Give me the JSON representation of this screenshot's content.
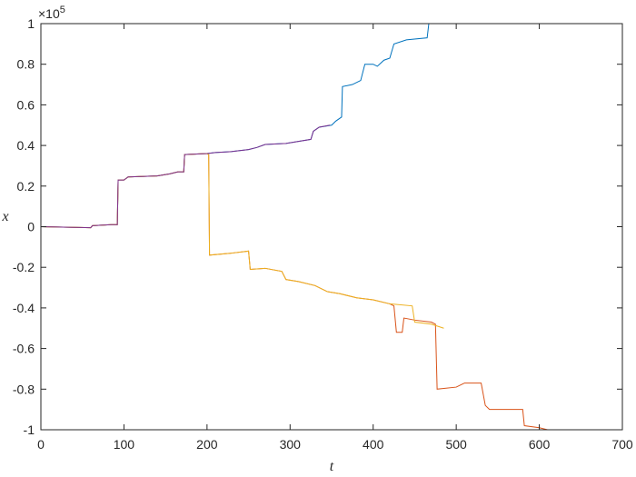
{
  "chart_data": {
    "type": "line",
    "x_label": "t",
    "y_label": "x",
    "y_multiplier": "×10",
    "y_multiplier_exponent": "5",
    "xlim": [
      0,
      700
    ],
    "xticks": [
      0,
      100,
      200,
      300,
      400,
      500,
      600,
      700
    ],
    "ylim": [
      -1,
      1
    ],
    "yticks": [
      -1,
      -0.8,
      -0.6,
      -0.4,
      -0.2,
      0,
      0.2,
      0.4,
      0.6,
      0.8,
      1
    ],
    "grid": false,
    "box": true,
    "series": [
      {
        "color": "#0072BD",
        "x": [
          0,
          60,
          62,
          85,
          92,
          93,
          100,
          105,
          140,
          155,
          165,
          172,
          173,
          200,
          210,
          230,
          250,
          260,
          270,
          295,
          310,
          325,
          328,
          335,
          350,
          355,
          362,
          363,
          375,
          385,
          390,
          400,
          405,
          413,
          420,
          425,
          440,
          465,
          467,
          478
        ],
        "values": [
          0,
          -0.005,
          0.005,
          0.01,
          0.01,
          0.23,
          0.23,
          0.245,
          0.25,
          0.26,
          0.27,
          0.27,
          0.355,
          0.36,
          0.365,
          0.37,
          0.38,
          0.39,
          0.405,
          0.41,
          0.42,
          0.43,
          0.47,
          0.49,
          0.5,
          0.52,
          0.54,
          0.69,
          0.7,
          0.72,
          0.8,
          0.8,
          0.79,
          0.82,
          0.83,
          0.9,
          0.92,
          0.93,
          1.0,
          1.0
        ]
      },
      {
        "color": "#D95319",
        "x": [
          0,
          60,
          62,
          85,
          92,
          93,
          100,
          105,
          140,
          155,
          165,
          172,
          173,
          200,
          202,
          203,
          230,
          250,
          252,
          270,
          290,
          295,
          310,
          330,
          345,
          360,
          380,
          400,
          420,
          425,
          428,
          435,
          437,
          450,
          470,
          475,
          477,
          500,
          510,
          530,
          535,
          540,
          580,
          582,
          600,
          610,
          630
        ],
        "values": [
          0,
          -0.005,
          0.005,
          0.01,
          0.01,
          0.23,
          0.23,
          0.245,
          0.25,
          0.26,
          0.27,
          0.27,
          0.355,
          0.36,
          0.355,
          -0.14,
          -0.13,
          -0.12,
          -0.21,
          -0.205,
          -0.22,
          -0.26,
          -0.27,
          -0.29,
          -0.32,
          -0.33,
          -0.35,
          -0.36,
          -0.38,
          -0.39,
          -0.52,
          -0.52,
          -0.45,
          -0.46,
          -0.47,
          -0.48,
          -0.8,
          -0.79,
          -0.77,
          -0.77,
          -0.88,
          -0.9,
          -0.9,
          -0.98,
          -0.99,
          -1.0,
          -1.0
        ]
      },
      {
        "color": "#EDB120",
        "x": [
          0,
          60,
          62,
          85,
          92,
          93,
          100,
          105,
          140,
          155,
          165,
          172,
          173,
          200,
          202,
          203,
          230,
          250,
          252,
          270,
          290,
          295,
          310,
          330,
          345,
          360,
          380,
          400,
          420,
          447,
          450,
          470,
          485
        ],
        "values": [
          0,
          -0.005,
          0.005,
          0.01,
          0.01,
          0.23,
          0.23,
          0.245,
          0.25,
          0.26,
          0.27,
          0.27,
          0.355,
          0.36,
          0.355,
          -0.14,
          -0.13,
          -0.12,
          -0.21,
          -0.205,
          -0.22,
          -0.26,
          -0.27,
          -0.29,
          -0.32,
          -0.33,
          -0.35,
          -0.36,
          -0.38,
          -0.39,
          -0.47,
          -0.48,
          -0.5
        ]
      },
      {
        "color": "#7E2F8E",
        "x": [
          0,
          60,
          62,
          85,
          92,
          93,
          100,
          105,
          140,
          155,
          165,
          172,
          173,
          200,
          210,
          230,
          250,
          260,
          270,
          295,
          310,
          325,
          328,
          335,
          348
        ],
        "values": [
          0,
          -0.005,
          0.005,
          0.01,
          0.01,
          0.23,
          0.23,
          0.245,
          0.25,
          0.26,
          0.27,
          0.27,
          0.355,
          0.36,
          0.365,
          0.37,
          0.38,
          0.39,
          0.405,
          0.41,
          0.42,
          0.43,
          0.47,
          0.49,
          0.5
        ]
      }
    ]
  }
}
